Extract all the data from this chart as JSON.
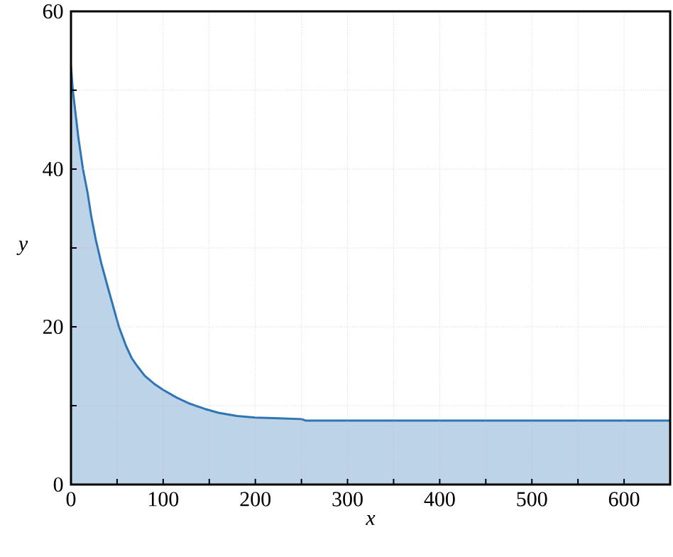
{
  "chart_data": {
    "type": "area",
    "xlabel": "x",
    "ylabel": "y",
    "x": [
      0,
      2,
      5,
      8,
      13,
      18,
      22,
      27,
      33,
      40,
      46,
      52,
      60,
      66,
      72,
      80,
      90,
      100,
      115,
      130,
      145,
      160,
      180,
      200,
      225,
      250,
      255,
      300,
      400,
      500,
      600,
      650
    ],
    "values": [
      53,
      50,
      47,
      44,
      40,
      37,
      34,
      31,
      28,
      25,
      22.5,
      20,
      17.5,
      16,
      15,
      13.8,
      12.8,
      12,
      11,
      10.2,
      9.6,
      9.1,
      8.7,
      8.5,
      8.4,
      8.3,
      8.1,
      8.1,
      8.1,
      8.1,
      8.1,
      8.1
    ],
    "color": "#2e75b6",
    "xlim": [
      0,
      650
    ],
    "ylim": [
      0,
      60
    ],
    "xticks": [
      0,
      {
        "value": 50,
        "label": null
      },
      100,
      {
        "value": 150,
        "label": null
      },
      200,
      {
        "value": 250,
        "label": null
      },
      300,
      {
        "value": 350,
        "label": null
      },
      400,
      {
        "value": 450,
        "label": null
      },
      500,
      {
        "value": 550,
        "label": null
      },
      600
    ],
    "yticks": [
      0,
      {
        "value": 10,
        "label": null
      },
      20,
      {
        "value": 30,
        "label": null
      },
      40,
      {
        "value": 50,
        "label": null
      },
      60
    ],
    "grid": true,
    "line_style": "solid",
    "marker": "none"
  }
}
